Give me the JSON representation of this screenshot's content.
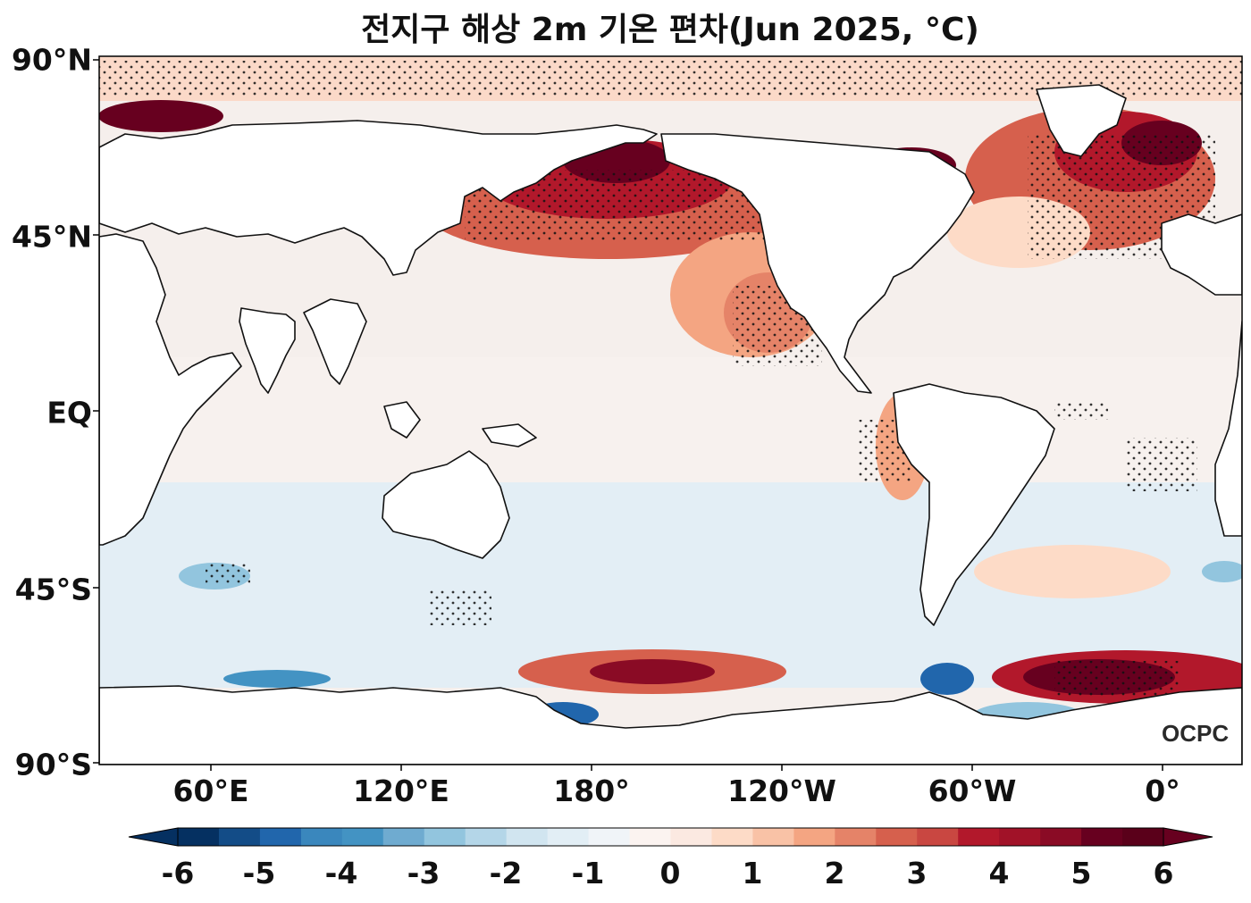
{
  "title": "전지구 해상 2m 기온 편차(Jun 2025, °C)",
  "lat_ticks": [
    "90°N",
    "45°N",
    "EQ",
    "45°S",
    "90°S"
  ],
  "lon_ticks": [
    "60°E",
    "120°E",
    "180°",
    "120°W",
    "60°W",
    "0°"
  ],
  "colorbar": {
    "ticks": [
      "-6",
      "-5",
      "-4",
      "-3",
      "-2",
      "-1",
      "0",
      "1",
      "2",
      "3",
      "4",
      "5",
      "6"
    ],
    "levels": [
      -6,
      -5.5,
      -5,
      -4.5,
      -4,
      -3.5,
      -3,
      -2.5,
      -2,
      -1.5,
      -1,
      -0.5,
      0,
      0.5,
      1,
      1.5,
      2,
      2.5,
      3,
      3.5,
      4,
      4.5,
      5,
      5.5,
      6
    ],
    "colors": [
      "#053061",
      "#134c87",
      "#2166ac",
      "#3a87bd",
      "#4393c3",
      "#6fabd0",
      "#92c5de",
      "#b4d6e8",
      "#d1e5f0",
      "#e2eef5",
      "#f0f4f8",
      "#fbf3f0",
      "#fbe9e1",
      "#fddbc7",
      "#f9c2a6",
      "#f4a582",
      "#e58368",
      "#d6604d",
      "#c94741",
      "#b2182b",
      "#a11228",
      "#8a0b25",
      "#67001f",
      "#5a001a"
    ],
    "under_color": "#053061",
    "over_color": "#67001f"
  },
  "logo_text": "OCPC",
  "colors": {
    "land": "#ffffff",
    "coast": "#111111",
    "ocean_base": "#f6f1ef"
  }
}
